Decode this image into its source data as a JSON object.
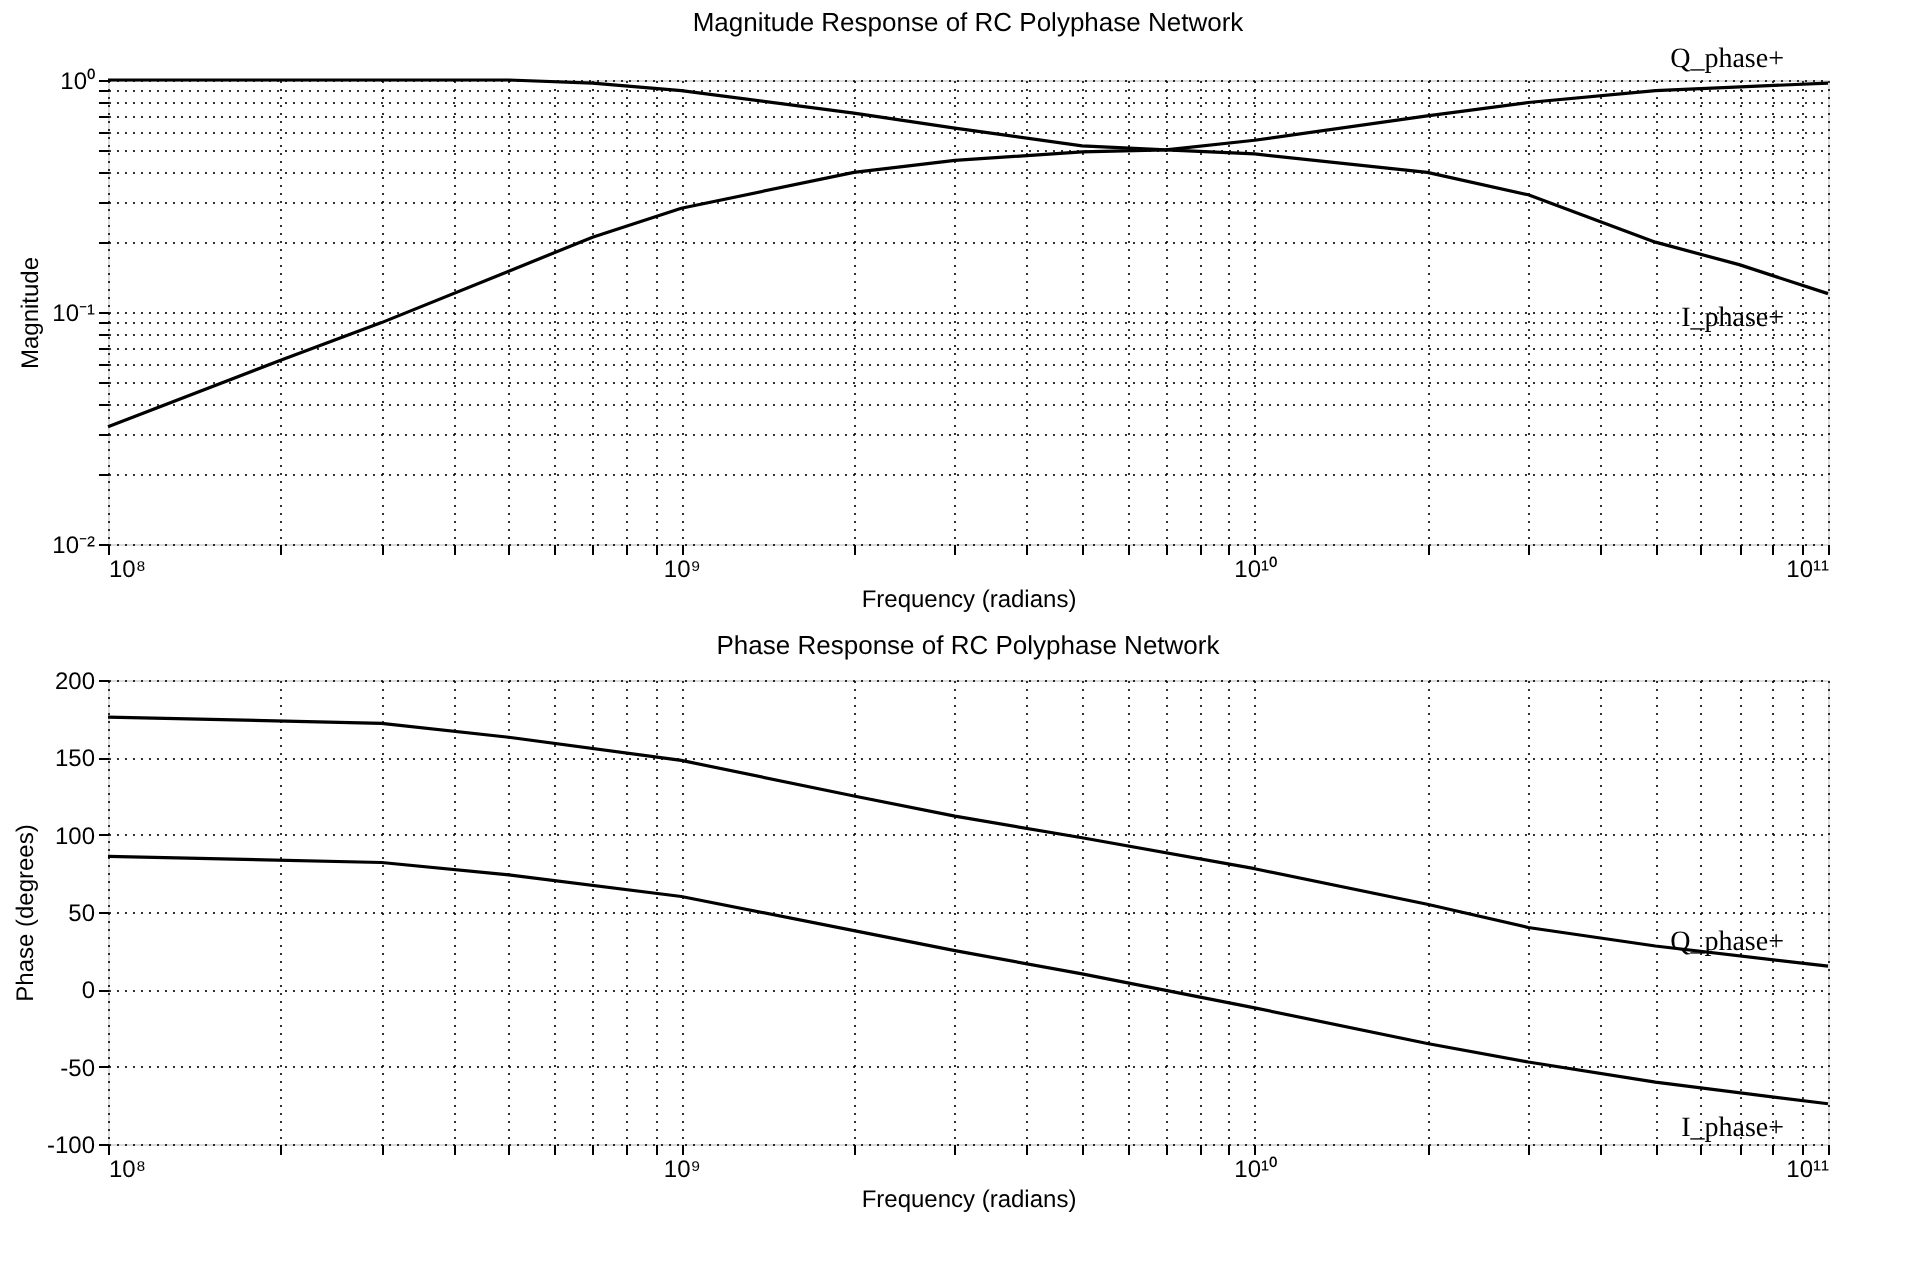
{
  "chart_data": [
    {
      "type": "line",
      "title": "Magnitude Response of RC Polyphase Network",
      "xlabel": "Frequency (radians)",
      "ylabel": "Magnitude",
      "log": "xy",
      "grid": true,
      "line_style": "solid",
      "marker": "none",
      "xlim": [
        100000000.0,
        100000000000.0
      ],
      "ylim": [
        0.01,
        1
      ],
      "xticks": [
        {
          "value": 100000000.0,
          "label": "10⁸"
        },
        {
          "value": 200000000.0,
          "label": null
        },
        {
          "value": 300000000.0,
          "label": null
        },
        {
          "value": 400000000.0,
          "label": null
        },
        {
          "value": 500000000.0,
          "label": null
        },
        {
          "value": 600000000.0,
          "label": null
        },
        {
          "value": 700000000.0,
          "label": null
        },
        {
          "value": 800000000.0,
          "label": null
        },
        {
          "value": 900000000.0,
          "label": null
        },
        {
          "value": 1000000000.0,
          "label": "10⁹"
        },
        {
          "value": 2000000000.0,
          "label": null
        },
        {
          "value": 3000000000.0,
          "label": null
        },
        {
          "value": 4000000000.0,
          "label": null
        },
        {
          "value": 5000000000.0,
          "label": null
        },
        {
          "value": 6000000000.0,
          "label": null
        },
        {
          "value": 7000000000.0,
          "label": null
        },
        {
          "value": 8000000000.0,
          "label": null
        },
        {
          "value": 9000000000.0,
          "label": null
        },
        {
          "value": 10000000000.0,
          "label": "10¹⁰"
        },
        {
          "value": 20000000000.0,
          "label": null
        },
        {
          "value": 30000000000.0,
          "label": null
        },
        {
          "value": 40000000000.0,
          "label": null
        },
        {
          "value": 50000000000.0,
          "label": null
        },
        {
          "value": 60000000000.0,
          "label": null
        },
        {
          "value": 70000000000.0,
          "label": null
        },
        {
          "value": 80000000000.0,
          "label": null
        },
        {
          "value": 90000000000.0,
          "label": null
        },
        {
          "value": 100000000000.0,
          "label": "10¹¹"
        }
      ],
      "yticks": [
        {
          "value": 0.01,
          "label": "10⁻²"
        },
        {
          "value": 0.02,
          "label": null
        },
        {
          "value": 0.03,
          "label": null
        },
        {
          "value": 0.04,
          "label": null
        },
        {
          "value": 0.05,
          "label": null
        },
        {
          "value": 0.06,
          "label": null
        },
        {
          "value": 0.07,
          "label": null
        },
        {
          "value": 0.08,
          "label": null
        },
        {
          "value": 0.09,
          "label": null
        },
        {
          "value": 0.1,
          "label": "10⁻¹"
        },
        {
          "value": 0.2,
          "label": null
        },
        {
          "value": 0.3,
          "label": null
        },
        {
          "value": 0.4,
          "label": null
        },
        {
          "value": 0.5,
          "label": null
        },
        {
          "value": 0.6,
          "label": null
        },
        {
          "value": 0.7,
          "label": null
        },
        {
          "value": 0.8,
          "label": null
        },
        {
          "value": 0.9,
          "label": null
        },
        {
          "value": 1,
          "label": "10⁰"
        }
      ],
      "series": [
        {
          "name": "Q_phase+",
          "color": "#000000",
          "x": [
            100000000.0,
            200000000.0,
            300000000.0,
            500000000.0,
            700000000.0,
            1000000000.0,
            2000000000.0,
            3000000000.0,
            5000000000.0,
            7000000000.0,
            10000000000.0,
            20000000000.0,
            30000000000.0,
            50000000000.0,
            100000000000.0
          ],
          "values": [
            0.032,
            0.062,
            0.09,
            0.15,
            0.21,
            0.28,
            0.4,
            0.45,
            0.49,
            0.5,
            0.55,
            0.7,
            0.8,
            0.9,
            0.97
          ]
        },
        {
          "name": "I_phase+",
          "color": "#000000",
          "x": [
            100000000.0,
            200000000.0,
            500000000.0,
            700000000.0,
            1000000000.0,
            2000000000.0,
            3000000000.0,
            5000000000.0,
            7000000000.0,
            10000000000.0,
            20000000000.0,
            30000000000.0,
            50000000000.0,
            70000000000.0,
            100000000000.0
          ],
          "values": [
            1.0,
            1.0,
            1.0,
            0.97,
            0.9,
            0.72,
            0.62,
            0.52,
            0.5,
            0.48,
            0.4,
            0.32,
            0.2,
            0.16,
            0.12
          ]
        }
      ]
    },
    {
      "type": "line",
      "title": "Phase Response of RC Polyphase Network",
      "xlabel": "Frequency (radians)",
      "ylabel": "Phase (degrees)",
      "log": "x",
      "grid": true,
      "line_style": "solid",
      "marker": "none",
      "xlim": [
        100000000.0,
        100000000000.0
      ],
      "ylim": [
        -100,
        200
      ],
      "xticks": [
        {
          "value": 100000000.0,
          "label": "10⁸"
        },
        {
          "value": 200000000.0,
          "label": null
        },
        {
          "value": 300000000.0,
          "label": null
        },
        {
          "value": 400000000.0,
          "label": null
        },
        {
          "value": 500000000.0,
          "label": null
        },
        {
          "value": 600000000.0,
          "label": null
        },
        {
          "value": 700000000.0,
          "label": null
        },
        {
          "value": 800000000.0,
          "label": null
        },
        {
          "value": 900000000.0,
          "label": null
        },
        {
          "value": 1000000000.0,
          "label": "10⁹"
        },
        {
          "value": 2000000000.0,
          "label": null
        },
        {
          "value": 3000000000.0,
          "label": null
        },
        {
          "value": 4000000000.0,
          "label": null
        },
        {
          "value": 5000000000.0,
          "label": null
        },
        {
          "value": 6000000000.0,
          "label": null
        },
        {
          "value": 7000000000.0,
          "label": null
        },
        {
          "value": 8000000000.0,
          "label": null
        },
        {
          "value": 9000000000.0,
          "label": null
        },
        {
          "value": 10000000000.0,
          "label": "10¹⁰"
        },
        {
          "value": 20000000000.0,
          "label": null
        },
        {
          "value": 30000000000.0,
          "label": null
        },
        {
          "value": 40000000000.0,
          "label": null
        },
        {
          "value": 50000000000.0,
          "label": null
        },
        {
          "value": 60000000000.0,
          "label": null
        },
        {
          "value": 70000000000.0,
          "label": null
        },
        {
          "value": 80000000000.0,
          "label": null
        },
        {
          "value": 90000000000.0,
          "label": null
        },
        {
          "value": 100000000000.0,
          "label": "10¹¹"
        }
      ],
      "yticks": [
        -100,
        -50,
        0,
        50,
        100,
        150,
        200
      ],
      "series": [
        {
          "name": "Q_phase+",
          "color": "#000000",
          "x": [
            100000000.0,
            300000000.0,
            500000000.0,
            1000000000.0,
            2000000000.0,
            3000000000.0,
            5000000000.0,
            10000000000.0,
            20000000000.0,
            30000000000.0,
            50000000000.0,
            100000000000.0
          ],
          "values": [
            176,
            172,
            163,
            148,
            125,
            112,
            98,
            78,
            55,
            40,
            28,
            15
          ]
        },
        {
          "name": "I_phase+",
          "color": "#000000",
          "x": [
            100000000.0,
            300000000.0,
            500000000.0,
            1000000000.0,
            2000000000.0,
            3000000000.0,
            5000000000.0,
            10000000000.0,
            20000000000.0,
            30000000000.0,
            50000000000.0,
            100000000000.0
          ],
          "values": [
            86,
            82,
            74,
            60,
            38,
            25,
            10,
            -12,
            -35,
            -47,
            -60,
            -74
          ]
        }
      ]
    }
  ]
}
